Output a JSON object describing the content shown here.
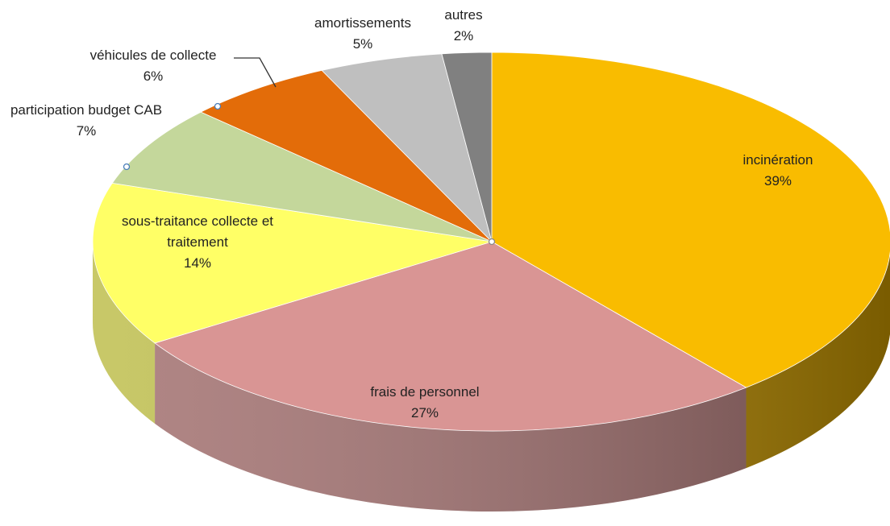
{
  "chart_data": {
    "type": "pie",
    "categories": [
      "incinération",
      "frais de personnel",
      "sous-traitance collecte et traitement",
      "participation budget CAB",
      "véhicules de collecte",
      "amortissements",
      "autres"
    ],
    "values": [
      39,
      27,
      14,
      7,
      6,
      5,
      2
    ],
    "value_labels": [
      "39%",
      "27%",
      "14%",
      "7%",
      "6%",
      "5%",
      "2%"
    ],
    "colors": [
      "#F9BC00",
      "#D99594",
      "#FFFF66",
      "#C4D79B",
      "#E36C09",
      "#BFBFBF",
      "#808080"
    ]
  }
}
